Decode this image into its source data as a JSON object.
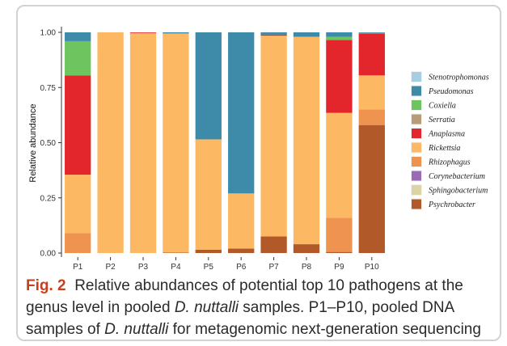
{
  "caption": {
    "fig_label": "Fig. 2",
    "part1": "Relative abundances of potential top 10 pathogens at the genus level in pooled ",
    "species1": "D. nuttalli",
    "part2": " samples. P1–P10, pooled DNA samples of ",
    "species2": "D. nuttalli",
    "part3": " for metagenomic next-generation sequencing"
  },
  "chart_data": {
    "type": "bar",
    "stacked": true,
    "title": "",
    "xlabel": "",
    "ylabel": "Relative abundance",
    "ylim": [
      0,
      1
    ],
    "yticks": [
      "0.00",
      "0.25",
      "0.50",
      "0.75",
      "1.00"
    ],
    "ytick_values": [
      0,
      0.25,
      0.5,
      0.75,
      1.0
    ],
    "grid": false,
    "legend_position": "right",
    "categories": [
      "P1",
      "P2",
      "P3",
      "P4",
      "P5",
      "P6",
      "P7",
      "P8",
      "P9",
      "P10"
    ],
    "series": [
      {
        "name": "Psychrobacter",
        "color": "#b15928",
        "values": [
          0.0,
          0.0,
          0.0,
          0.002,
          0.015,
          0.02,
          0.075,
          0.04,
          0.005,
          0.58
        ]
      },
      {
        "name": "Sphingobacterium",
        "color": "#dcd4a4",
        "values": [
          0,
          0,
          0,
          0,
          0,
          0,
          0,
          0,
          0,
          0
        ]
      },
      {
        "name": "Corynebacterium",
        "color": "#9a6bb5",
        "values": [
          0,
          0,
          0,
          0,
          0,
          0,
          0,
          0,
          0,
          0
        ]
      },
      {
        "name": "Rhizophagus",
        "color": "#ef9350",
        "values": [
          0.09,
          0.0,
          0.0,
          0.0,
          0.0,
          0.0,
          0.0,
          0.0,
          0.155,
          0.07
        ]
      },
      {
        "name": "Rickettsia",
        "color": "#fdb863",
        "values": [
          0.265,
          1.0,
          0.997,
          0.993,
          0.5,
          0.25,
          0.91,
          0.94,
          0.475,
          0.155
        ]
      },
      {
        "name": "Anaplasma",
        "color": "#e3262b",
        "values": [
          0.45,
          0.0,
          0.003,
          0.0,
          0.0,
          0.0,
          0.005,
          0.0,
          0.33,
          0.19
        ]
      },
      {
        "name": "Serratia",
        "color": "#b89b77",
        "values": [
          0,
          0,
          0,
          0,
          0,
          0,
          0,
          0,
          0,
          0
        ]
      },
      {
        "name": "Coxiella",
        "color": "#6ec55f",
        "values": [
          0.155,
          0.0,
          0.0,
          0.0,
          0.0,
          0.0,
          0.0,
          0.0,
          0.015,
          0.002
        ]
      },
      {
        "name": "Pseudomonas",
        "color": "#3d8ba8",
        "values": [
          0.04,
          0.0,
          0.0,
          0.005,
          0.485,
          0.73,
          0.01,
          0.02,
          0.02,
          0.003
        ]
      },
      {
        "name": "Stenotrophomonas",
        "color": "#a6cee3",
        "values": [
          0,
          0,
          0,
          0,
          0,
          0,
          0,
          0,
          0,
          0
        ]
      }
    ],
    "legend_order": [
      "Stenotrophomonas",
      "Pseudomonas",
      "Coxiella",
      "Serratia",
      "Anaplasma",
      "Rickettsia",
      "Rhizophagus",
      "Corynebacterium",
      "Sphingobacterium",
      "Psychrobacter"
    ]
  }
}
